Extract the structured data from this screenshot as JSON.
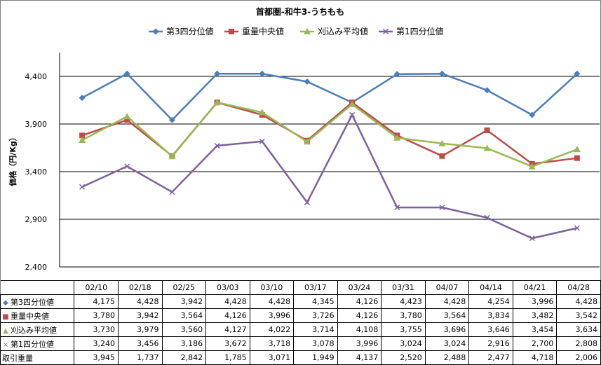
{
  "chart_data": {
    "type": "line",
    "title": "首都圏-和牛3-うちもも",
    "ylabel": "価格（円/Kg）",
    "ylim": [
      2400,
      4650
    ],
    "yticks": [
      2400,
      2900,
      3400,
      3900,
      4400
    ],
    "ytick_labels": [
      "2,400",
      "2,900",
      "3,400",
      "3,900",
      "4,400"
    ],
    "grid": true,
    "legend_position": "top",
    "categories": [
      "02/10",
      "02/18",
      "02/25",
      "03/03",
      "03/10",
      "03/17",
      "03/24",
      "03/31",
      "04/07",
      "04/14",
      "04/21",
      "04/28"
    ],
    "series": [
      {
        "name": "第3四分位値",
        "marker": "diamond",
        "color": "#4a7ebb",
        "values": [
          4175,
          4428,
          3942,
          4428,
          4428,
          4345,
          4126,
          4423,
          4428,
          4254,
          3996,
          4428
        ],
        "labels": [
          "4,175",
          "4,428",
          "3,942",
          "4,428",
          "4,428",
          "4,345",
          "4,126",
          "4,423",
          "4,428",
          "4,254",
          "3,996",
          "4,428"
        ]
      },
      {
        "name": "重量中央値",
        "marker": "square",
        "color": "#be4b48",
        "values": [
          3780,
          3942,
          3564,
          4126,
          3996,
          3726,
          4126,
          3780,
          3564,
          3834,
          3482,
          3542
        ],
        "labels": [
          "3,780",
          "3,942",
          "3,564",
          "4,126",
          "3,996",
          "3,726",
          "4,126",
          "3,780",
          "3,564",
          "3,834",
          "3,482",
          "3,542"
        ]
      },
      {
        "name": "刈込み平均値",
        "marker": "triangle",
        "color": "#98b954",
        "values": [
          3730,
          3979,
          3560,
          4127,
          4022,
          3714,
          4108,
          3755,
          3696,
          3646,
          3454,
          3634
        ],
        "labels": [
          "3,730",
          "3,979",
          "3,560",
          "4,127",
          "4,022",
          "3,714",
          "4,108",
          "3,755",
          "3,696",
          "3,646",
          "3,454",
          "3,634"
        ]
      },
      {
        "name": "第1四分位値",
        "marker": "x",
        "color": "#7d60a0",
        "values": [
          3240,
          3456,
          3186,
          3672,
          3718,
          3078,
          3996,
          3024,
          3024,
          2916,
          2700,
          2808
        ],
        "labels": [
          "3,240",
          "3,456",
          "3,186",
          "3,672",
          "3,718",
          "3,078",
          "3,996",
          "3,024",
          "3,024",
          "2,916",
          "2,700",
          "2,808"
        ]
      }
    ],
    "extra_rows": [
      {
        "name": "取引重量",
        "labels": [
          "3,945",
          "1,737",
          "2,842",
          "1,785",
          "3,071",
          "1,949",
          "4,137",
          "2,520",
          "2,488",
          "2,477",
          "4,718",
          "2,006"
        ]
      }
    ]
  }
}
